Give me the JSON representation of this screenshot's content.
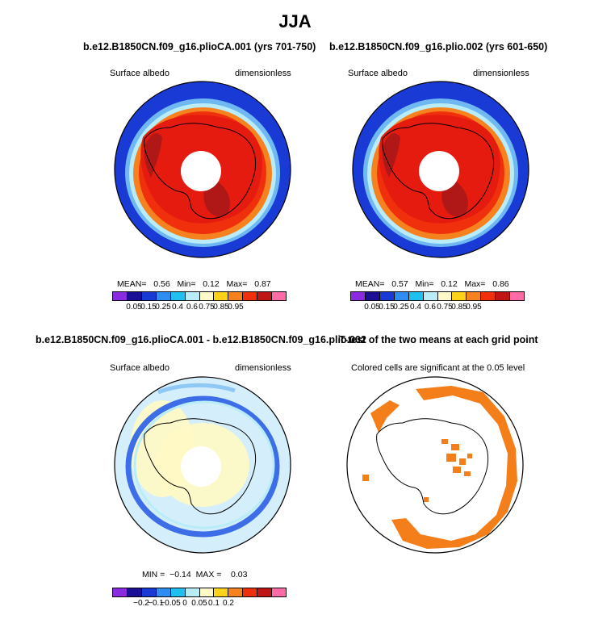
{
  "title": "JJA",
  "panels": [
    {
      "title": "b.e12.B1850CN.f09_g16.plioCA.001 (yrs 701-750)",
      "left_label": "Surface albedo",
      "right_label": "dimensionless",
      "stats": {
        "mean_label": "MEAN=",
        "mean": "0.56",
        "min_label": "Min=",
        "min": "0.12",
        "max_label": "Max=",
        "max": "0.87"
      },
      "colorbar_labels": [
        "0.05",
        "0.15",
        "0.25",
        "0.4",
        "0.6",
        "0.75",
        "0.85",
        "0.95"
      ]
    },
    {
      "title": "b.e12.B1850CN.f09_g16.plio.002 (yrs 601-650)",
      "left_label": "Surface albedo",
      "right_label": "dimensionless",
      "stats": {
        "mean_label": "MEAN=",
        "mean": "0.57",
        "min_label": "Min=",
        "min": "0.12",
        "max_label": "Max=",
        "max": "0.86"
      },
      "colorbar_labels": [
        "0.05",
        "0.15",
        "0.25",
        "0.4",
        "0.6",
        "0.75",
        "0.85",
        "0.95"
      ]
    },
    {
      "title": "b.e12.B1850CN.f09_g16.plioCA.001 - b.e12.B1850CN.f09_g16.plio.002",
      "left_label": "Surface albedo",
      "right_label": "dimensionless",
      "stats": {
        "min_label": "MIN =",
        "min": "−0.14",
        "max_label": "MAX =",
        "max": "0.03"
      },
      "colorbar_labels": [
        "−0.2",
        "−0.1",
        "−0.05",
        "0",
        "0.05",
        "0.1",
        "0.2"
      ]
    },
    {
      "title": "T-test of the two means at each grid point",
      "subtitle": "Colored cells are significant at the 0.05 level"
    }
  ],
  "colors": {
    "ocean_blue": "#1a3ad6",
    "ice_red": "#e61b10",
    "ice_dark": "#b01818",
    "ice_orange": "#f5821f",
    "sig_orange": "#f47f1a",
    "diff_light": "#d4eefb",
    "diff_yellow": "#fff8c4",
    "diff_blue": "#3d6ee8",
    "abs_palette": [
      "#8a2be2",
      "#1b0f96",
      "#1a3ad6",
      "#2f8cf0",
      "#1fc0f0",
      "#b8ecf8",
      "#fffac8",
      "#ffd21a",
      "#f5821f",
      "#f0300c",
      "#c01515",
      "#ff6ba6"
    ],
    "diff_palette": [
      "#8a2be2",
      "#1b0f96",
      "#1a3ad6",
      "#2f8cf0",
      "#1fc0f0",
      "#b8ecf8",
      "#fffac8",
      "#ffd21a",
      "#f5821f",
      "#f0300c",
      "#c01515",
      "#ff6ba6"
    ]
  }
}
